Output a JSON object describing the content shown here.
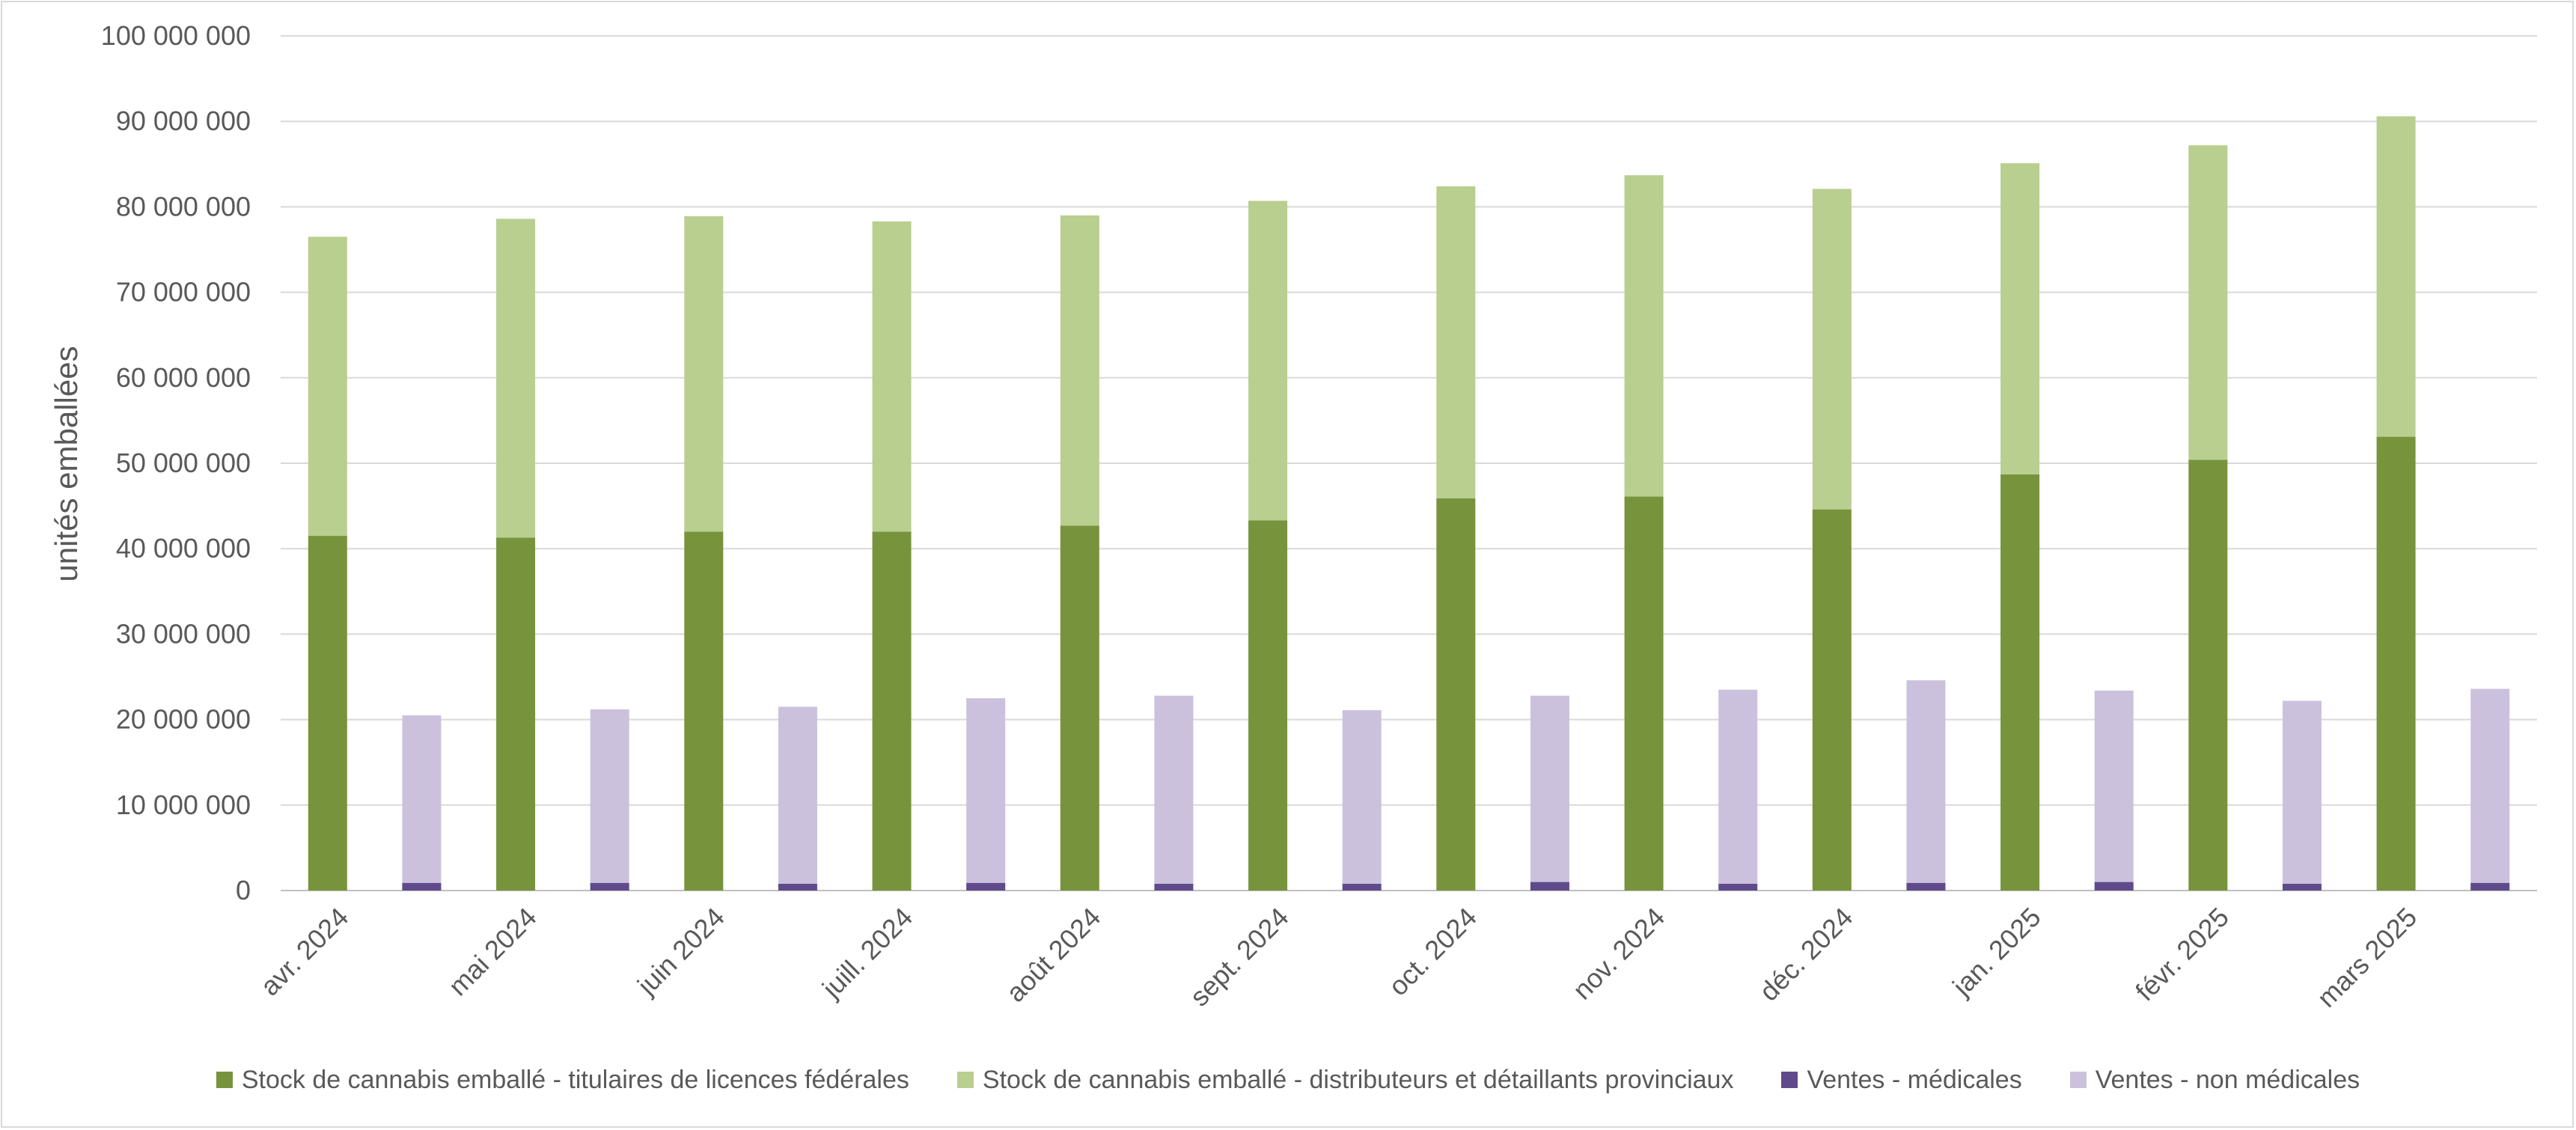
{
  "chart_data": {
    "type": "bar",
    "title": "",
    "ylabel": "unités emballées",
    "xlabel": "",
    "ylim": [
      0,
      100000000
    ],
    "y_ticks": [
      0,
      10000000,
      20000000,
      30000000,
      40000000,
      50000000,
      60000000,
      70000000,
      80000000,
      90000000,
      100000000
    ],
    "y_tick_labels": [
      "0",
      "10 000 000",
      "20 000 000",
      "30 000 000",
      "40 000 000",
      "50 000 000",
      "60 000 000",
      "70 000 000",
      "80 000 000",
      "90 000 000",
      "100 000 000"
    ],
    "grid": true,
    "legend_position": "bottom",
    "categories": [
      "avr. 2024",
      "mai 2024",
      "juin 2024",
      "juill. 2024",
      "août 2024",
      "sept. 2024",
      "oct. 2024",
      "nov. 2024",
      "déc. 2024",
      "jan. 2025",
      "févr. 2025",
      "mars 2025"
    ],
    "stacks": [
      {
        "id": "stock",
        "series": [
          {
            "name": "Stock de cannabis emballé - titulaires de licences fédérales",
            "color": "#77933c",
            "values": [
              41500000,
              41300000,
              42000000,
              42000000,
              42700000,
              43300000,
              45900000,
              46100000,
              44600000,
              48700000,
              50400000,
              53100000
            ]
          },
          {
            "name": "Stock de cannabis emballé - distributeurs et détaillants provinciaux",
            "color": "#b8cf8f",
            "values": [
              35000000,
              37300000,
              36900000,
              36300000,
              36300000,
              37400000,
              36500000,
              37600000,
              37500000,
              36400000,
              36800000,
              37500000
            ]
          }
        ]
      },
      {
        "id": "ventes",
        "series": [
          {
            "name": "Ventes - médicales",
            "color": "#5f4b8b",
            "values": [
              900000,
              900000,
              800000,
              900000,
              800000,
              800000,
              1000000,
              800000,
              900000,
              1000000,
              800000,
              900000
            ]
          },
          {
            "name": "Ventes - non médicales",
            "color": "#ccc1dd",
            "values": [
              19600000,
              20300000,
              20700000,
              21600000,
              22000000,
              20300000,
              21800000,
              22700000,
              23700000,
              22400000,
              21400000,
              22700000
            ]
          }
        ]
      }
    ]
  }
}
